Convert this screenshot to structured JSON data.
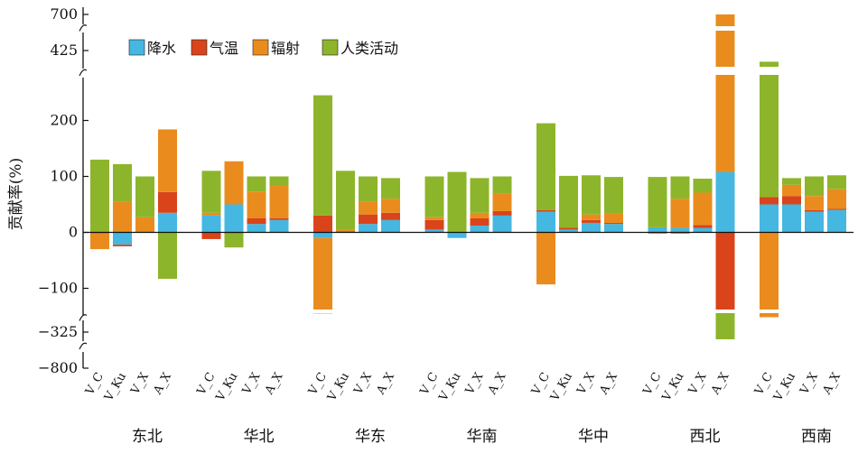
{
  "chart_data": {
    "type": "bar",
    "stacking": "stacked (positive and negative stacked separately)",
    "ylabel": "贡献率(%)",
    "xlabel": "",
    "title": "",
    "yaxis": {
      "type": "broken",
      "segments": [
        {
          "range": [
            -130,
            250
          ],
          "ticks": [
            -100,
            0,
            100,
            200
          ]
        },
        {
          "range": [
            -325,
            -325
          ],
          "ticks": [
            -325
          ]
        },
        {
          "range": [
            -800,
            -800
          ],
          "ticks": [
            -800
          ]
        },
        {
          "range": [
            425,
            425
          ],
          "ticks": [
            425
          ]
        },
        {
          "range": [
            700,
            700
          ],
          "ticks": [
            700
          ]
        }
      ],
      "tick_labels": [
        "700",
        "425",
        "200",
        "100",
        "0",
        "−100",
        "−325",
        "−800"
      ]
    },
    "legend": {
      "position": "top-left",
      "entries": [
        "降水",
        "气温",
        "辐射",
        "人类活动"
      ]
    },
    "colors": {
      "降水": "#45b7e1",
      "气温": "#d9441b",
      "辐射": "#ea8c1d",
      "人类活动": "#8db52b",
      "axis": "#111111"
    },
    "groups": [
      "东北",
      "华北",
      "华东",
      "华南",
      "华中",
      "西北",
      "西南"
    ],
    "bars_per_group": [
      "V_C",
      "V_Ku",
      "V_X",
      "A_X"
    ],
    "series": [
      {
        "name": "降水",
        "values": [
          [
            0,
            -22,
            0,
            35
          ],
          [
            30,
            50,
            15,
            22
          ],
          [
            -10,
            0,
            15,
            22
          ],
          [
            5,
            -10,
            12,
            30
          ],
          [
            37,
            5,
            17,
            15
          ],
          [
            9,
            8,
            8,
            108
          ],
          [
            50,
            50,
            37,
            40
          ]
        ]
      },
      {
        "name": "气温",
        "values": [
          [
            -2,
            -3,
            0,
            37
          ],
          [
            -12,
            -2,
            10,
            3
          ],
          [
            30,
            2,
            17,
            13
          ],
          [
            17,
            0,
            13,
            8
          ],
          [
            3,
            3,
            5,
            2
          ],
          [
            -2,
            -2,
            5,
            -140
          ],
          [
            13,
            15,
            3,
            2
          ]
        ]
      },
      {
        "name": "辐射",
        "values": [
          [
            -28,
            55,
            27,
            112
          ],
          [
            5,
            77,
            48,
            58
          ],
          [
            -135,
            3,
            23,
            25
          ],
          [
            5,
            0,
            10,
            32
          ],
          [
            -93,
            0,
            10,
            17
          ],
          [
            0,
            52,
            58,
            600
          ],
          [
            -160,
            20,
            25,
            35
          ]
        ]
      },
      {
        "name": "人类活动",
        "values": [
          [
            130,
            67,
            73,
            -83
          ],
          [
            75,
            -25,
            27,
            17
          ],
          [
            215,
            105,
            45,
            37
          ],
          [
            73,
            108,
            62,
            30
          ],
          [
            155,
            93,
            70,
            65
          ],
          [
            90,
            40,
            25,
            -280
          ],
          [
            300,
            12,
            35,
            25
          ]
        ]
      }
    ]
  }
}
